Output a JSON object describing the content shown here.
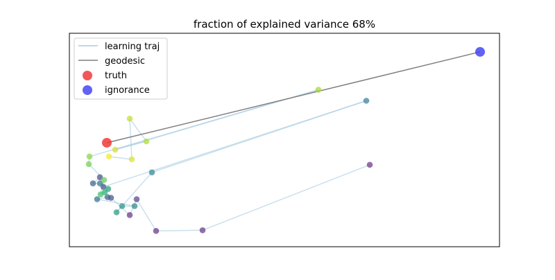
{
  "chart_data": {
    "type": "scatter",
    "title": "fraction of explained variance 68%",
    "xlabel": "",
    "ylabel": "",
    "xlim": [
      0,
      620
    ],
    "ylim": [
      0,
      310
    ],
    "axis_ticks": false,
    "grid": false,
    "legend_position": "top-left",
    "legend": [
      {
        "label": "learning traj",
        "kind": "line",
        "color": "#a6cbe3"
      },
      {
        "label": "geodesic",
        "kind": "line",
        "color": "#7f7f7f"
      },
      {
        "label": "truth",
        "kind": "marker",
        "color": "#ee3a3a"
      },
      {
        "label": "ignorance",
        "kind": "marker",
        "color": "#3b3bf0"
      }
    ],
    "truth": {
      "x": 54,
      "y": 151
    },
    "ignorance": {
      "x": 592,
      "y": 283
    },
    "trajectory": [
      {
        "x": 433,
        "y": 119,
        "color": "#6f3f8c"
      },
      {
        "x": 192,
        "y": 24,
        "color": "#6f3f8c"
      },
      {
        "x": 125,
        "y": 23,
        "color": "#6f3f8c"
      },
      {
        "x": 97,
        "y": 69,
        "color": "#5c4f8e"
      },
      {
        "x": 87,
        "y": 46,
        "color": "#6f3f8c"
      },
      {
        "x": 60,
        "y": 71,
        "color": "#4f5c8e"
      },
      {
        "x": 55,
        "y": 72,
        "color": "#4a6690"
      },
      {
        "x": 40,
        "y": 69,
        "color": "#3f7a8f"
      },
      {
        "x": 94,
        "y": 59,
        "color": "#3a8d8c"
      },
      {
        "x": 76,
        "y": 59,
        "color": "#349889"
      },
      {
        "x": 68,
        "y": 50,
        "color": "#2fa084"
      },
      {
        "x": 119,
        "y": 108,
        "color": "#3a8d9a"
      },
      {
        "x": 428,
        "y": 212,
        "color": "#3f859e"
      },
      {
        "x": 49,
        "y": 87,
        "color": "#4f5a8e"
      },
      {
        "x": 44,
        "y": 101,
        "color": "#4f5a8e"
      },
      {
        "x": 34,
        "y": 92,
        "color": "#46678f"
      },
      {
        "x": 44,
        "y": 92,
        "color": "#3a7f8e"
      },
      {
        "x": 56,
        "y": 84,
        "color": "#2fa57f"
      },
      {
        "x": 51,
        "y": 79,
        "color": "#2fb07a"
      },
      {
        "x": 45,
        "y": 76,
        "color": "#47c16e"
      },
      {
        "x": 50,
        "y": 97,
        "color": "#6fce5d"
      },
      {
        "x": 28,
        "y": 120,
        "color": "#7ad358"
      },
      {
        "x": 29,
        "y": 131,
        "color": "#8fd74e"
      },
      {
        "x": 359,
        "y": 228,
        "color": "#a6d93f"
      },
      {
        "x": 66,
        "y": 141,
        "color": "#d6e23a"
      },
      {
        "x": 111,
        "y": 153,
        "color": "#b2dc40"
      },
      {
        "x": 87,
        "y": 186,
        "color": "#c8de3a"
      },
      {
        "x": 90,
        "y": 127,
        "color": "#dfe33a"
      },
      {
        "x": 57,
        "y": 131,
        "color": "#f2e935"
      }
    ]
  }
}
